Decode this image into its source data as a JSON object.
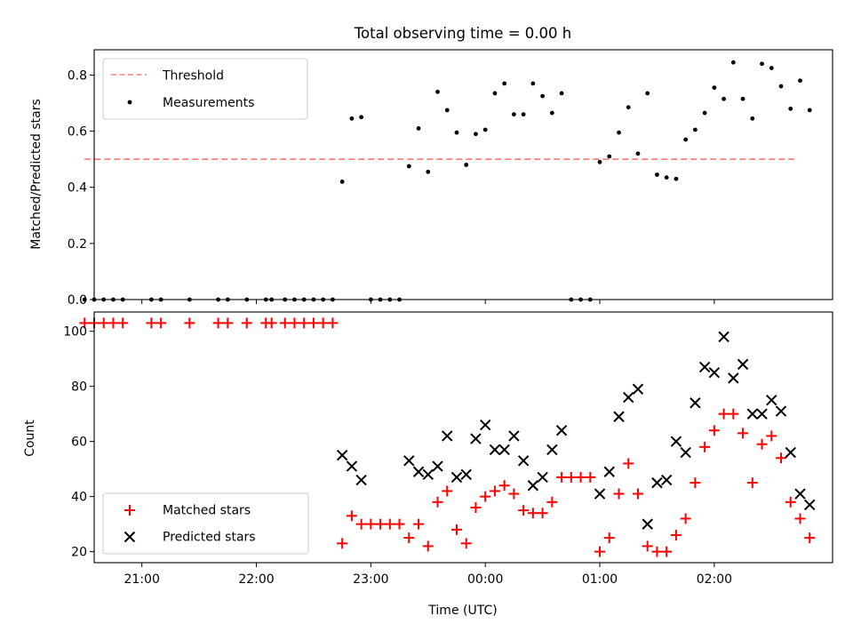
{
  "chart_data": [
    {
      "type": "scatter",
      "title": "Total observing time = 0.00 h",
      "ylabel": "Matched/Predicted stars",
      "xlabel": "",
      "ylim": [
        0,
        0.89
      ],
      "yticks": [
        "0.0",
        "0.2",
        "0.4",
        "0.6",
        "0.8"
      ],
      "xlim": [
        "20:35",
        "03:02"
      ],
      "legend": {
        "position": "top-left"
      },
      "threshold": {
        "name": "Threshold",
        "value": 0.5,
        "x_range": [
          "20:30",
          "02:42"
        ],
        "color": "#ff7f7f"
      },
      "series": [
        {
          "name": "Measurements",
          "color": "#000000",
          "points": [
            [
              "20:30",
              0
            ],
            [
              "20:35",
              0
            ],
            [
              "20:40",
              0
            ],
            [
              "20:45",
              0
            ],
            [
              "20:50",
              0
            ],
            [
              "21:05",
              0
            ],
            [
              "21:10",
              0
            ],
            [
              "21:25",
              0
            ],
            [
              "21:40",
              0
            ],
            [
              "21:45",
              0
            ],
            [
              "21:55",
              0
            ],
            [
              "22:05",
              0
            ],
            [
              "22:08",
              0
            ],
            [
              "22:15",
              0
            ],
            [
              "22:20",
              0
            ],
            [
              "22:25",
              0
            ],
            [
              "22:30",
              0
            ],
            [
              "22:35",
              0
            ],
            [
              "22:40",
              0
            ],
            [
              "22:45",
              0.42
            ],
            [
              "22:50",
              0.645
            ],
            [
              "22:55",
              0.65
            ],
            [
              "23:00",
              0
            ],
            [
              "23:05",
              0
            ],
            [
              "23:10",
              0
            ],
            [
              "23:15",
              0
            ],
            [
              "23:20",
              0.475
            ],
            [
              "23:25",
              0.61
            ],
            [
              "23:30",
              0.455
            ],
            [
              "23:35",
              0.74
            ],
            [
              "23:40",
              0.675
            ],
            [
              "23:45",
              0.595
            ],
            [
              "23:50",
              0.48
            ],
            [
              "23:55",
              0.59
            ],
            [
              "00:00",
              0.605
            ],
            [
              "00:05",
              0.735
            ],
            [
              "00:10",
              0.77
            ],
            [
              "00:15",
              0.66
            ],
            [
              "00:20",
              0.66
            ],
            [
              "00:25",
              0.77
            ],
            [
              "00:30",
              0.725
            ],
            [
              "00:35",
              0.665
            ],
            [
              "00:40",
              0.735
            ],
            [
              "00:45",
              0
            ],
            [
              "00:50",
              0
            ],
            [
              "00:55",
              0
            ],
            [
              "01:00",
              0.49
            ],
            [
              "01:05",
              0.51
            ],
            [
              "01:10",
              0.595
            ],
            [
              "01:15",
              0.685
            ],
            [
              "01:20",
              0.52
            ],
            [
              "01:25",
              0.735
            ],
            [
              "01:30",
              0.445
            ],
            [
              "01:35",
              0.435
            ],
            [
              "01:40",
              0.43
            ],
            [
              "01:45",
              0.57
            ],
            [
              "01:50",
              0.605
            ],
            [
              "01:55",
              0.665
            ],
            [
              "02:00",
              0.755
            ],
            [
              "02:05",
              0.715
            ],
            [
              "02:10",
              0.845
            ],
            [
              "02:15",
              0.715
            ],
            [
              "02:20",
              0.645
            ],
            [
              "02:25",
              0.84
            ],
            [
              "02:30",
              0.825
            ],
            [
              "02:35",
              0.76
            ],
            [
              "02:40",
              0.68
            ],
            [
              "02:45",
              0.78
            ],
            [
              "02:50",
              0.675
            ]
          ]
        }
      ]
    },
    {
      "type": "scatter",
      "title": "",
      "ylabel": "Count",
      "xlabel": "Time (UTC)",
      "ylim": [
        16,
        107
      ],
      "yticks": [
        "20",
        "40",
        "60",
        "80",
        "100"
      ],
      "xlim": [
        "20:35",
        "03:02"
      ],
      "xticks": [
        "21:00",
        "22:00",
        "23:00",
        "00:00",
        "01:00",
        "02:00"
      ],
      "legend": {
        "position": "bottom-left"
      },
      "series": [
        {
          "name": "Matched stars",
          "marker": "plus",
          "color": "#ff0000",
          "points": [
            [
              "20:30",
              103
            ],
            [
              "20:35",
              103
            ],
            [
              "20:40",
              103
            ],
            [
              "20:45",
              103
            ],
            [
              "20:50",
              103
            ],
            [
              "21:05",
              103
            ],
            [
              "21:10",
              103
            ],
            [
              "21:25",
              103
            ],
            [
              "21:40",
              103
            ],
            [
              "21:45",
              103
            ],
            [
              "21:55",
              103
            ],
            [
              "22:05",
              103
            ],
            [
              "22:08",
              103
            ],
            [
              "22:15",
              103
            ],
            [
              "22:20",
              103
            ],
            [
              "22:25",
              103
            ],
            [
              "22:30",
              103
            ],
            [
              "22:35",
              103
            ],
            [
              "22:40",
              103
            ],
            [
              "22:45",
              23
            ],
            [
              "22:50",
              33
            ],
            [
              "22:55",
              30
            ],
            [
              "23:00",
              30
            ],
            [
              "23:05",
              30
            ],
            [
              "23:10",
              30
            ],
            [
              "23:15",
              30
            ],
            [
              "23:20",
              25
            ],
            [
              "23:25",
              30
            ],
            [
              "23:30",
              22
            ],
            [
              "23:35",
              38
            ],
            [
              "23:40",
              42
            ],
            [
              "23:45",
              28
            ],
            [
              "23:50",
              23
            ],
            [
              "23:55",
              36
            ],
            [
              "00:00",
              40
            ],
            [
              "00:05",
              42
            ],
            [
              "00:10",
              44
            ],
            [
              "00:15",
              41
            ],
            [
              "00:20",
              35
            ],
            [
              "00:25",
              34
            ],
            [
              "00:30",
              34
            ],
            [
              "00:35",
              38
            ],
            [
              "00:40",
              47
            ],
            [
              "00:45",
              47
            ],
            [
              "00:50",
              47
            ],
            [
              "00:55",
              47
            ],
            [
              "01:00",
              20
            ],
            [
              "01:05",
              25
            ],
            [
              "01:10",
              41
            ],
            [
              "01:15",
              52
            ],
            [
              "01:20",
              41
            ],
            [
              "01:25",
              22
            ],
            [
              "01:30",
              20
            ],
            [
              "01:35",
              20
            ],
            [
              "01:40",
              26
            ],
            [
              "01:45",
              32
            ],
            [
              "01:50",
              45
            ],
            [
              "01:55",
              58
            ],
            [
              "02:00",
              64
            ],
            [
              "02:05",
              70
            ],
            [
              "02:10",
              70
            ],
            [
              "02:15",
              63
            ],
            [
              "02:20",
              45
            ],
            [
              "02:25",
              59
            ],
            [
              "02:30",
              62
            ],
            [
              "02:35",
              54
            ],
            [
              "02:40",
              38
            ],
            [
              "02:45",
              32
            ],
            [
              "02:50",
              25
            ]
          ]
        },
        {
          "name": "Predicted stars",
          "marker": "x",
          "color": "#000000",
          "points": [
            [
              "22:45",
              55
            ],
            [
              "22:50",
              51
            ],
            [
              "22:55",
              46
            ],
            [
              "23:20",
              53
            ],
            [
              "23:25",
              49
            ],
            [
              "23:30",
              48
            ],
            [
              "23:35",
              51
            ],
            [
              "23:40",
              62
            ],
            [
              "23:45",
              47
            ],
            [
              "23:50",
              48
            ],
            [
              "23:55",
              61
            ],
            [
              "00:00",
              66
            ],
            [
              "00:05",
              57
            ],
            [
              "00:10",
              57
            ],
            [
              "00:15",
              62
            ],
            [
              "00:20",
              53
            ],
            [
              "00:25",
              44
            ],
            [
              "00:30",
              47
            ],
            [
              "00:35",
              57
            ],
            [
              "00:40",
              64
            ],
            [
              "01:00",
              41
            ],
            [
              "01:05",
              49
            ],
            [
              "01:10",
              69
            ],
            [
              "01:15",
              76
            ],
            [
              "01:20",
              79
            ],
            [
              "01:25",
              30
            ],
            [
              "01:30",
              45
            ],
            [
              "01:35",
              46
            ],
            [
              "01:40",
              60
            ],
            [
              "01:45",
              56
            ],
            [
              "01:50",
              74
            ],
            [
              "01:55",
              87
            ],
            [
              "02:00",
              85
            ],
            [
              "02:05",
              98
            ],
            [
              "02:10",
              83
            ],
            [
              "02:15",
              88
            ],
            [
              "02:20",
              70
            ],
            [
              "02:25",
              70
            ],
            [
              "02:30",
              75
            ],
            [
              "02:35",
              71
            ],
            [
              "02:40",
              56
            ],
            [
              "02:45",
              41
            ],
            [
              "02:50",
              37
            ]
          ]
        }
      ]
    }
  ]
}
